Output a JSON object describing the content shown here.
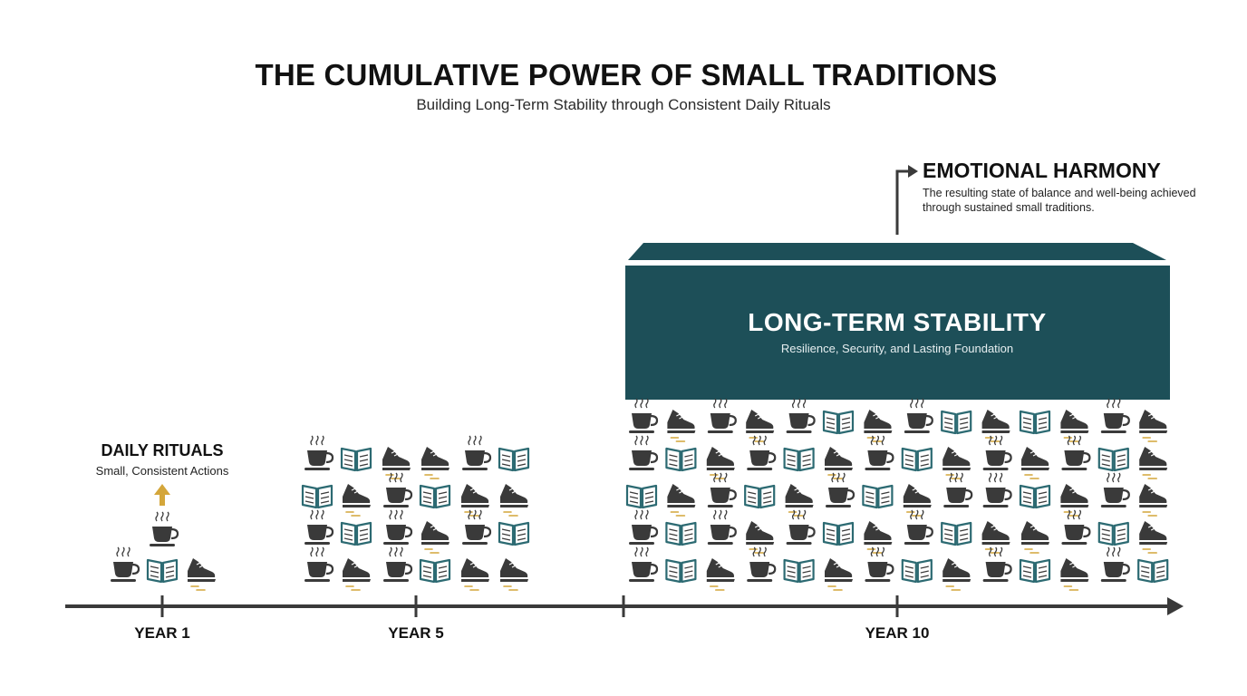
{
  "header": {
    "title": "THE CUMULATIVE POWER OF SMALL TRADITIONS",
    "subtitle": "Building Long-Term Stability through Consistent Daily Rituals"
  },
  "emotional_harmony": {
    "title": "EMOTIONAL HARMONY",
    "description": "The resulting state of balance and well-being achieved through sustained small traditions."
  },
  "long_term_stability": {
    "title": "LONG-TERM STABILITY",
    "subtitle": "Resilience, Security, and Lasting Foundation"
  },
  "daily_rituals": {
    "title": "DAILY RITUALS",
    "subtitle": "Small, Consistent Actions"
  },
  "timeline": {
    "labels": [
      "YEAR 1",
      "YEAR 5",
      "YEAR 10"
    ]
  },
  "icons": {
    "ritual_types": [
      "coffee-cup-icon",
      "open-book-icon",
      "running-shoe-icon"
    ]
  },
  "colors": {
    "teal": "#1d4f58",
    "gold": "#d4a63a",
    "dark": "#3a3a3a",
    "book_teal": "#2c6a72"
  }
}
